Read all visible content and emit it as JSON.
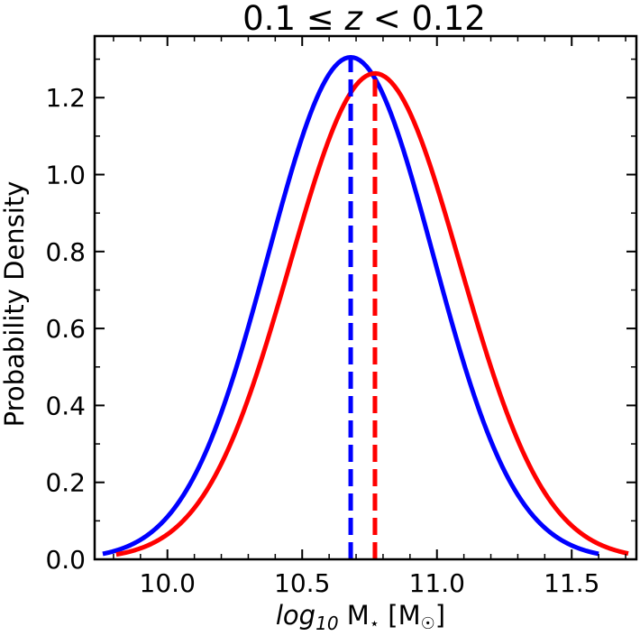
{
  "chart_data": {
    "type": "line",
    "title": {
      "pre": "0.1 ≤ ",
      "var": "z",
      "post": " < 0.12"
    },
    "xlabel": {
      "var": "log",
      "sub": "10",
      "rest": " M",
      "star": "⋆",
      "unit": " [M",
      "sun": "☉",
      "close": "]"
    },
    "ylabel": "Probability Density",
    "xlim": [
      9.73,
      11.74
    ],
    "ylim": [
      0.0,
      1.36
    ],
    "xticks": [
      "10.0",
      "10.5",
      "11.0",
      "11.5"
    ],
    "yticks": [
      "0.0",
      "0.2",
      "0.4",
      "0.6",
      "0.8",
      "1.0",
      "1.2"
    ],
    "grid": false,
    "series": [
      {
        "color": "#0000ff",
        "style": "solid",
        "x_range": [
          9.76,
          11.6
        ],
        "mean": 10.68,
        "std": 0.306,
        "peak": 1.305
      },
      {
        "color": "#ff0000",
        "style": "solid",
        "x_range": [
          9.81,
          11.71
        ],
        "mean": 10.77,
        "std": 0.316,
        "peak": 1.263
      }
    ],
    "markers": [
      {
        "color": "#0000ff",
        "style": "dashed",
        "x": 10.68,
        "y_top": 1.305
      },
      {
        "color": "#ff0000",
        "style": "dashed",
        "x": 10.77,
        "y_top": 1.263
      }
    ]
  }
}
